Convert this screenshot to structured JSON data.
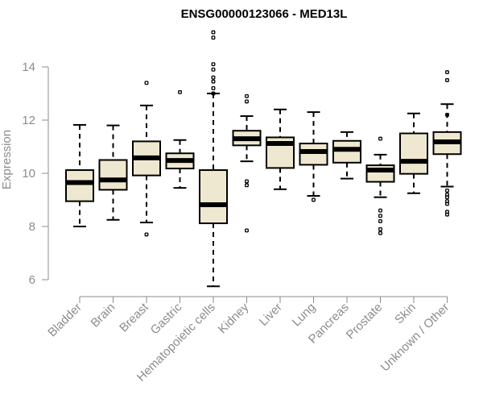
{
  "chart_data": {
    "type": "boxplot",
    "title": "ENSG00000123066 - MED13L",
    "xlabel": "",
    "ylabel": "Expression",
    "ylim": [
      5.7,
      15.4
    ],
    "yticks": [
      6,
      8,
      10,
      12,
      14
    ],
    "colors": {
      "box_fill": "#efe8d0",
      "box_stroke": "#000000",
      "axis": "#8c8c8c"
    },
    "categories": [
      "Bladder",
      "Brain",
      "Breast",
      "Gastric",
      "Hematopoietic cells",
      "Kidney",
      "Liver",
      "Lung",
      "Pancreas",
      "Prostate",
      "Skin",
      "Unknown / Other"
    ],
    "boxes": [
      {
        "category": "Bladder",
        "whisker_low": 8.0,
        "q1": 8.95,
        "median": 9.65,
        "q3": 10.12,
        "whisker_high": 11.82,
        "outliers": []
      },
      {
        "category": "Brain",
        "whisker_low": 8.25,
        "q1": 9.38,
        "median": 9.75,
        "q3": 10.5,
        "whisker_high": 11.8,
        "outliers": []
      },
      {
        "category": "Breast",
        "whisker_low": 8.15,
        "q1": 9.92,
        "median": 10.58,
        "q3": 11.2,
        "whisker_high": 12.55,
        "outliers": [
          13.4,
          7.7
        ]
      },
      {
        "category": "Gastric",
        "whisker_low": 9.45,
        "q1": 10.18,
        "median": 10.48,
        "q3": 10.75,
        "whisker_high": 11.25,
        "outliers": [
          13.05
        ]
      },
      {
        "category": "Hematopoietic cells",
        "whisker_low": 5.75,
        "q1": 8.12,
        "median": 8.82,
        "q3": 10.12,
        "whisker_high": 13.0,
        "outliers": [
          15.3,
          15.1,
          14.1,
          13.9,
          13.6,
          13.45,
          13.2,
          13.0
        ]
      },
      {
        "category": "Kidney",
        "whisker_low": 10.45,
        "q1": 11.05,
        "median": 11.3,
        "q3": 11.6,
        "whisker_high": 12.15,
        "outliers": [
          12.9,
          12.7,
          9.7,
          9.55,
          7.85
        ]
      },
      {
        "category": "Liver",
        "whisker_low": 9.4,
        "q1": 10.2,
        "median": 11.12,
        "q3": 11.35,
        "whisker_high": 12.4,
        "outliers": []
      },
      {
        "category": "Lung",
        "whisker_low": 9.15,
        "q1": 10.32,
        "median": 10.82,
        "q3": 11.12,
        "whisker_high": 12.3,
        "outliers": [
          9.0
        ]
      },
      {
        "category": "Pancreas",
        "whisker_low": 9.8,
        "q1": 10.4,
        "median": 10.9,
        "q3": 11.22,
        "whisker_high": 11.55,
        "outliers": []
      },
      {
        "category": "Prostate",
        "whisker_low": 9.1,
        "q1": 9.68,
        "median": 10.12,
        "q3": 10.3,
        "whisker_high": 10.7,
        "outliers": [
          11.3,
          8.6,
          8.4,
          8.2,
          7.9,
          7.75
        ]
      },
      {
        "category": "Skin",
        "whisker_low": 9.25,
        "q1": 9.98,
        "median": 10.45,
        "q3": 11.5,
        "whisker_high": 12.25,
        "outliers": []
      },
      {
        "category": "Unknown / Other",
        "whisker_low": 9.5,
        "q1": 10.72,
        "median": 11.18,
        "q3": 11.55,
        "whisker_high": 12.6,
        "outliers": [
          13.8,
          13.5,
          12.2,
          9.35,
          9.2,
          9.1,
          8.95,
          8.85,
          8.55,
          8.45
        ]
      }
    ]
  }
}
